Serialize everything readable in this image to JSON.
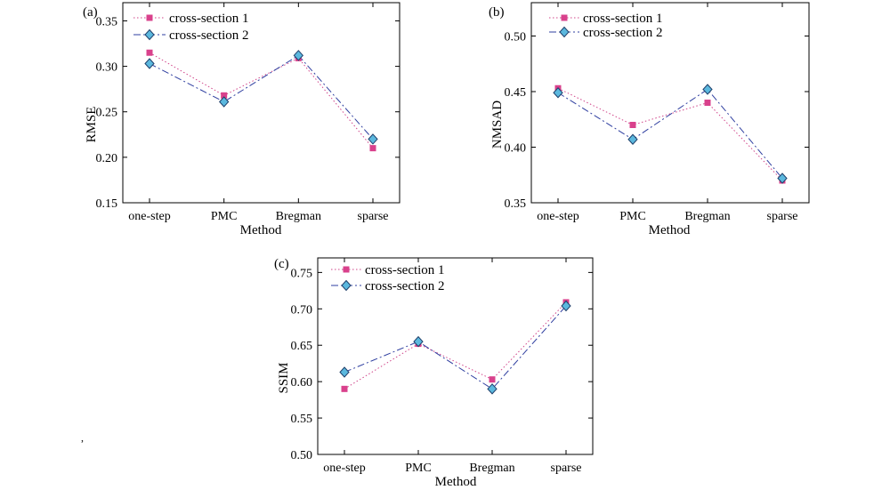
{
  "chart_data": [
    {
      "type": "line",
      "panel": "(a)",
      "categories": [
        "one-step",
        "PMC",
        "Bregman",
        "sparse"
      ],
      "series": [
        {
          "name": "cross-section 1",
          "values": [
            0.315,
            0.268,
            0.309,
            0.21
          ],
          "color": "#d0458a",
          "marker": "square",
          "dash": "dotted"
        },
        {
          "name": "cross-section 2",
          "values": [
            0.303,
            0.261,
            0.312,
            0.22
          ],
          "color": "#2f3fa0",
          "marker": "diamond",
          "dash": "dashdot"
        }
      ],
      "xlabel": "Method",
      "ylabel": "RMSE",
      "ylim": [
        0.15,
        0.37
      ],
      "yticks": [
        "0.15",
        "0.20",
        "0.25",
        "0.30",
        "0.35"
      ],
      "legend": "top-left"
    },
    {
      "type": "line",
      "panel": "(b)",
      "categories": [
        "one-step",
        "PMC",
        "Bregman",
        "sparse"
      ],
      "series": [
        {
          "name": "cross-section 1",
          "values": [
            0.453,
            0.42,
            0.44,
            0.37
          ],
          "color": "#d0458a",
          "marker": "square",
          "dash": "dotted"
        },
        {
          "name": "cross-section 2",
          "values": [
            0.449,
            0.407,
            0.452,
            0.372
          ],
          "color": "#2f3fa0",
          "marker": "diamond",
          "dash": "dashdot"
        }
      ],
      "xlabel": "Method",
      "ylabel": "NMSAD",
      "ylim": [
        0.35,
        0.53
      ],
      "yticks": [
        "0.35",
        "0.40",
        "0.45",
        "0.50"
      ],
      "legend": "top-left"
    },
    {
      "type": "line",
      "panel": "(c)",
      "categories": [
        "one-step",
        "PMC",
        "Bregman",
        "sparse"
      ],
      "series": [
        {
          "name": "cross-section 1",
          "values": [
            0.59,
            0.652,
            0.603,
            0.709
          ],
          "color": "#d0458a",
          "marker": "square",
          "dash": "dotted"
        },
        {
          "name": "cross-section 2",
          "values": [
            0.613,
            0.655,
            0.59,
            0.704
          ],
          "color": "#2f3fa0",
          "marker": "diamond",
          "dash": "dashdot"
        }
      ],
      "xlabel": "Method",
      "ylabel": "SSIM",
      "ylim": [
        0.5,
        0.77
      ],
      "yticks": [
        "0.50",
        "0.55",
        "0.60",
        "0.65",
        "0.70",
        "0.75"
      ],
      "legend": "top-left"
    }
  ],
  "stray_mark": ","
}
